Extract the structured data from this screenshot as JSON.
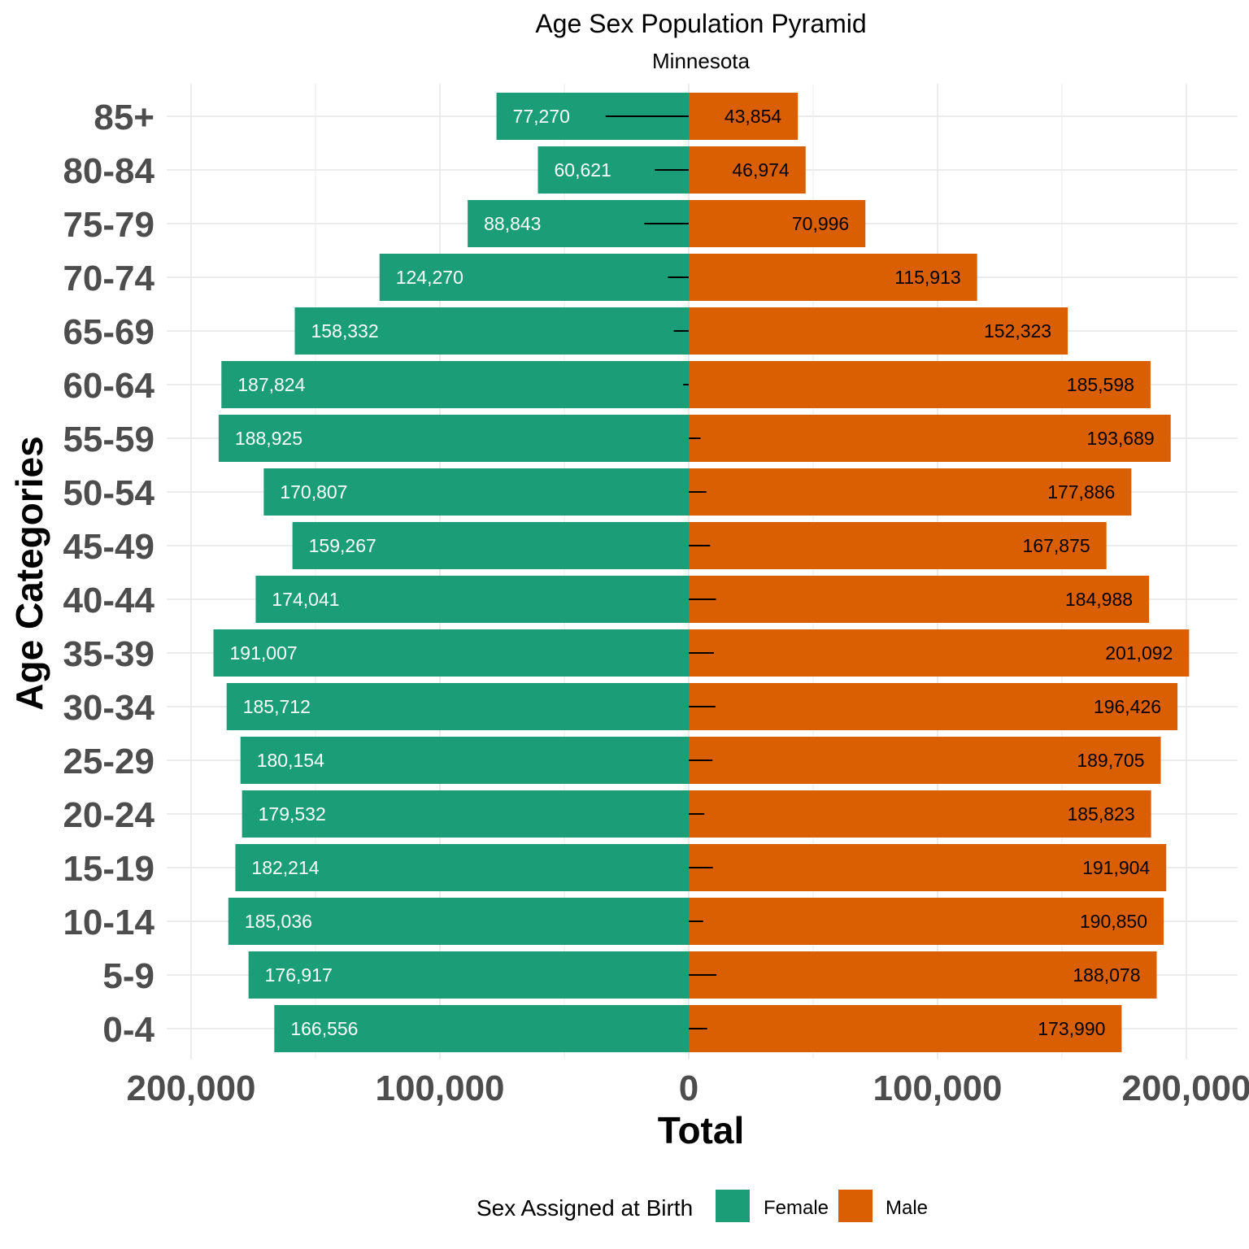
{
  "colors": {
    "female": "#1b9e77",
    "male": "#d95f02",
    "grid": "#ebebeb",
    "female_label": "#ffffff",
    "male_label": "#000000"
  },
  "chart_data": {
    "type": "bar",
    "orientation": "horizontal",
    "title": "Age Sex Population Pyramid",
    "subtitle": "Minnesota",
    "xlabel": "Total",
    "ylabel": "Age Categories",
    "xlim": [
      -200000,
      200000
    ],
    "xticks": [
      -200000,
      -100000,
      0,
      100000,
      200000
    ],
    "xtick_labels": [
      "200,000",
      "100,000",
      "0",
      "100,000",
      "200,000"
    ],
    "grid": true,
    "legend": {
      "title": "Sex Assigned at Birth",
      "position": "bottom",
      "entries": [
        "Female",
        "Male"
      ]
    },
    "categories": [
      "0-4",
      "5-9",
      "10-14",
      "15-19",
      "20-24",
      "25-29",
      "30-34",
      "35-39",
      "40-44",
      "45-49",
      "50-54",
      "55-59",
      "60-64",
      "65-69",
      "70-74",
      "75-79",
      "80-84",
      "85+"
    ],
    "series": [
      {
        "name": "Female",
        "side": "left",
        "values": [
          166556,
          176917,
          185036,
          182214,
          179532,
          180154,
          185712,
          191007,
          174041,
          159267,
          170807,
          188925,
          187824,
          158332,
          124270,
          88843,
          60621,
          77270
        ],
        "labels": [
          "166,556",
          "176,917",
          "185,036",
          "182,214",
          "179,532",
          "180,154",
          "185,712",
          "191,007",
          "174,041",
          "159,267",
          "170,807",
          "188,925",
          "187,824",
          "158,332",
          "124,270",
          "88,843",
          "60,621",
          "77,270"
        ]
      },
      {
        "name": "Male",
        "side": "right",
        "values": [
          173990,
          188078,
          190850,
          191904,
          185823,
          189705,
          196426,
          201092,
          184988,
          167875,
          177886,
          193689,
          185598,
          152323,
          115913,
          70996,
          46974,
          43854
        ],
        "labels": [
          "173,990",
          "188,078",
          "190,850",
          "191,904",
          "185,823",
          "189,705",
          "196,426",
          "201,092",
          "184,988",
          "167,875",
          "177,886",
          "193,689",
          "185,598",
          "152,323",
          "115,913",
          "70,996",
          "46,974",
          "43,854"
        ]
      }
    ]
  }
}
